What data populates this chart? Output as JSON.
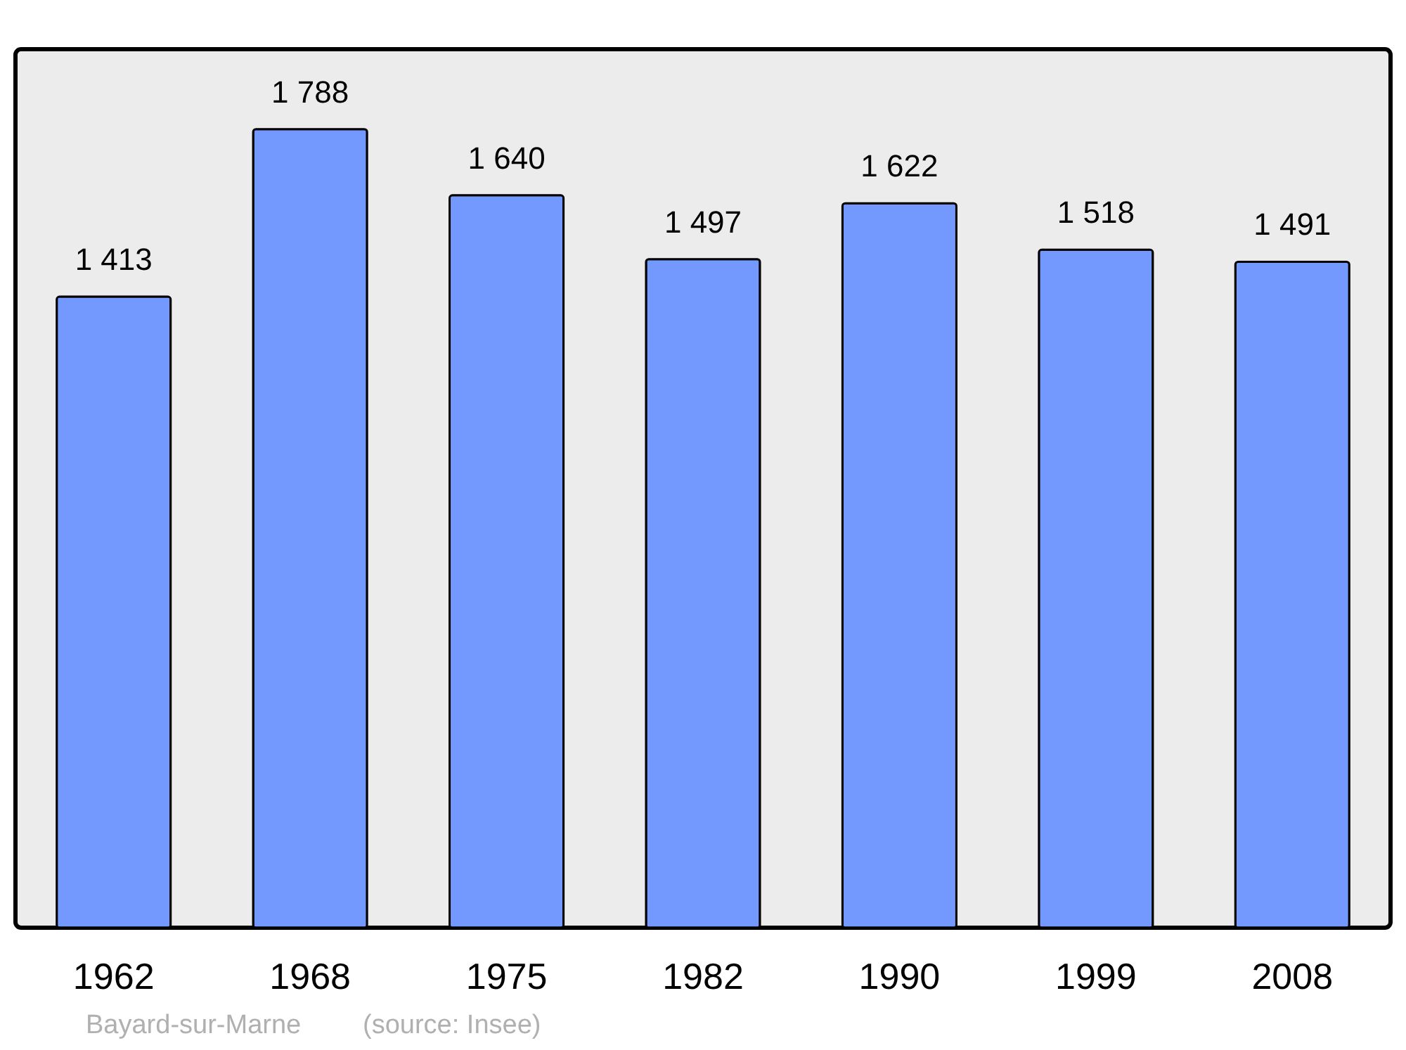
{
  "chart_data": {
    "type": "bar",
    "categories": [
      "1962",
      "1968",
      "1975",
      "1982",
      "1990",
      "1999",
      "2008"
    ],
    "values": [
      1413,
      1788,
      1640,
      1497,
      1622,
      1518,
      1491
    ],
    "value_labels": [
      "1 413",
      "1 788",
      "1 640",
      "1 497",
      "1 622",
      "1 518",
      "1 491"
    ],
    "color": "#7399ff",
    "ylim": [
      0,
      1967
    ],
    "grid": false,
    "annotations": [
      "Bayard-sur-Marne",
      "(source: Insee)"
    ]
  }
}
